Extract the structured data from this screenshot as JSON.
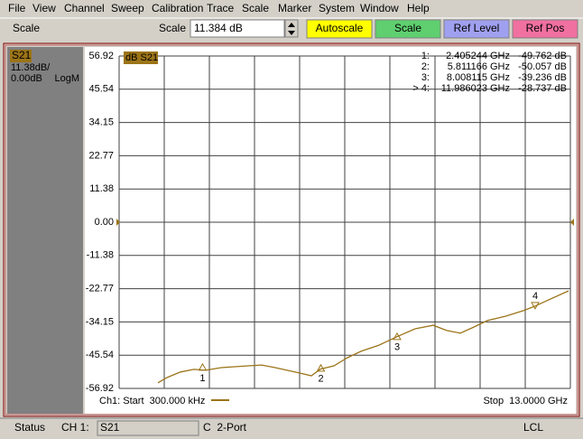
{
  "menu": [
    "File",
    "View",
    "Channel",
    "Sweep",
    "Calibration",
    "Trace",
    "Scale",
    "Marker",
    "System",
    "Window",
    "Help"
  ],
  "toolbar": {
    "title": "Scale",
    "field_label": "Scale",
    "field_value": "11.384 dB",
    "buttons": [
      "Autoscale",
      "Scale",
      "Ref Level",
      "Ref Pos"
    ]
  },
  "trace_panel": {
    "name": "S21",
    "scale": "11.38dB/",
    "ref": "0.00dB",
    "format": "LogM"
  },
  "chart_data": {
    "type": "line",
    "trace_label": "dB S21",
    "start_label": "Ch1: Start  300.000 kHz",
    "stop_label": "Stop  13.0000 GHz",
    "xlim": [
      0.0003,
      13
    ],
    "ylim": [
      -56.92,
      56.92
    ],
    "yticks": [
      56.92,
      45.54,
      34.15,
      22.77,
      11.38,
      {
        "value": 0,
        "label": "0.00"
      },
      -11.38,
      -22.77,
      -34.15,
      -45.54,
      -56.92
    ],
    "grid": true,
    "series": [
      {
        "color": "#9c7418",
        "x": [
          1.118,
          1.378,
          1.768,
          2.158,
          2.496,
          2.938,
          3.328,
          3.718,
          4.108,
          4.498,
          4.836,
          5.148,
          5.538,
          5.798,
          6.188,
          6.578,
          6.968,
          7.488,
          8.008,
          8.528,
          9.048,
          9.438,
          9.828,
          10.218,
          10.608,
          11.128,
          11.648,
          11.986,
          12.298,
          12.948
        ],
        "values": [
          -55.0,
          -53.2,
          -51.3,
          -50.4,
          -50.7,
          -49.8,
          -49.5,
          -49.2,
          -48.9,
          -49.8,
          -50.7,
          -51.5,
          -52.6,
          -50.3,
          -49.2,
          -46.4,
          -44.2,
          -42.1,
          -39.2,
          -36.5,
          -35.3,
          -37.1,
          -38.0,
          -35.9,
          -33.7,
          -32.2,
          -30.3,
          -28.7,
          -27.0,
          -23.5
        ]
      }
    ],
    "markers": [
      {
        "label": "1:",
        "number": "1",
        "x": 2.405244,
        "x_label": "2.405244 GHz",
        "value": -49.762,
        "value_label": "-49.762 dB"
      },
      {
        "label": "2:",
        "number": "2",
        "x": 5.811166,
        "x_label": "5.811166 GHz",
        "value": -50.057,
        "value_label": "-50.057 dB"
      },
      {
        "label": "3:",
        "number": "3",
        "x": 8.008115,
        "x_label": "8.008115 GHz",
        "value": -39.236,
        "value_label": "-39.236 dB"
      },
      {
        "label": "> 4:",
        "number": "4",
        "x": 11.986023,
        "x_label": "11.986023 GHz",
        "value": -28.737,
        "value_label": "-28.737 dB"
      }
    ]
  },
  "status": {
    "label": "Status",
    "channel": "CH 1:",
    "measurement": "S21",
    "cal": "C  2-Port",
    "mode": "LCL"
  }
}
